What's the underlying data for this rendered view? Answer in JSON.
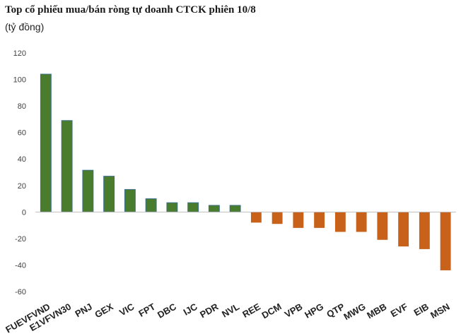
{
  "title": "Top cổ phiếu mua/bán ròng tự doanh CTCK phiên 10/8",
  "subtitle": "(tỷ đồng)",
  "chart_data": {
    "type": "bar",
    "title": "Top cổ phiếu mua/bán ròng tự doanh CTCK phiên 10/8",
    "ylabel": "(tỷ đồng)",
    "xlabel": "",
    "ylim": [
      -60,
      120
    ],
    "yticks": [
      -60,
      -40,
      -20,
      0,
      20,
      40,
      60,
      80,
      100,
      120
    ],
    "grid": false,
    "legend": "none",
    "categories": [
      "FUEVFVND",
      "E1VFVN30",
      "PNJ",
      "GEX",
      "VIC",
      "FPT",
      "DBC",
      "IJC",
      "PDR",
      "NVL",
      "REE",
      "DCM",
      "VPB",
      "HPG",
      "QTP",
      "MWG",
      "MBB",
      "EVF",
      "EIB",
      "MSN"
    ],
    "values": [
      104,
      69,
      31.5,
      27,
      17,
      10,
      7,
      7,
      5,
      5,
      -8,
      -9,
      -12,
      -12,
      -15,
      -15,
      -21,
      -26,
      -28,
      -44
    ],
    "colors": {
      "positive": "#4a7c2e",
      "negative": "#c8621b",
      "positive_edge": "#3c6e8a"
    }
  }
}
